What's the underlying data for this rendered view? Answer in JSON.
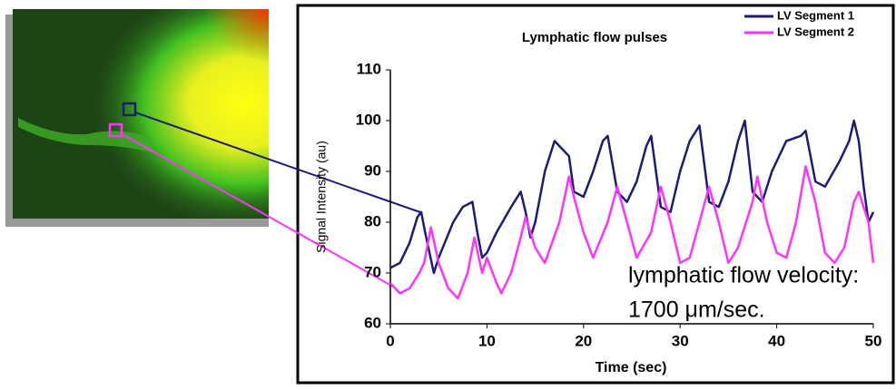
{
  "chart_data": {
    "type": "line",
    "title": "Lymphatic flow pulses",
    "y_label": "Signal Intensity (au)",
    "x_label": "Time (sec)",
    "annotations": [
      "lymphatic flow velocity:",
      "1700 μm/sec."
    ],
    "xlim": [
      0,
      50
    ],
    "xticks": [
      0,
      10,
      20,
      30,
      40,
      50
    ],
    "ylim": [
      60,
      110
    ],
    "yticks": [
      60,
      70,
      80,
      90,
      100,
      110
    ],
    "grid": false,
    "legend": "top-right",
    "series": [
      {
        "name": "LV Segment 1",
        "color": "#1c1c78",
        "x": [
          0,
          1,
          2,
          2.8,
          3.2,
          3.6,
          4.5,
          5,
          6.5,
          7.5,
          8.5,
          9,
          9.5,
          10,
          11,
          12.5,
          13.5,
          14,
          14.5,
          15,
          16,
          17,
          17.5,
          18.5,
          19,
          20,
          21,
          22,
          22.5,
          23.5,
          24.5,
          25.5,
          26.5,
          27,
          28,
          29,
          30,
          31,
          32,
          33,
          34,
          35,
          36,
          36.7,
          37.5,
          38.5,
          39.5,
          41,
          42.5,
          43,
          44,
          45,
          46.5,
          47.5,
          48,
          48.5,
          49,
          49.5,
          50
        ],
        "values": [
          71,
          72,
          76,
          81,
          82,
          78,
          70,
          73,
          80,
          83,
          84,
          78,
          73,
          74,
          78,
          83,
          86,
          82,
          77,
          80,
          90,
          96,
          95,
          93,
          86,
          85,
          90,
          96,
          97,
          86,
          84,
          88,
          95,
          97,
          83,
          82,
          90,
          96,
          99,
          84,
          83,
          88,
          96,
          100,
          86,
          84,
          90,
          96,
          97,
          98,
          88,
          87,
          92,
          96,
          100,
          96,
          87,
          80,
          82
        ]
      },
      {
        "name": "LV Segment 2",
        "color": "#ff33ff",
        "x": [
          0,
          1,
          2,
          3,
          3.5,
          4.2,
          5,
          6,
          7,
          8,
          8.7,
          9.5,
          10,
          11,
          11.5,
          12.5,
          13.5,
          14,
          15,
          16,
          17.5,
          18.5,
          19,
          20,
          21,
          22.5,
          23.5,
          24.5,
          25.5,
          27,
          28,
          29,
          30,
          31,
          32,
          33,
          34,
          35,
          36,
          37.5,
          38,
          39,
          40,
          41,
          42,
          43,
          44,
          45,
          46,
          47,
          48,
          48.5,
          49.5,
          50
        ],
        "values": [
          68,
          66,
          67,
          70,
          72,
          79,
          72,
          67,
          65,
          70,
          77,
          70,
          73,
          68,
          66,
          70,
          77,
          81,
          75,
          72,
          80,
          89,
          85,
          78,
          73,
          80,
          87,
          80,
          73,
          78,
          87,
          80,
          72,
          73,
          80,
          87,
          80,
          72,
          75,
          84,
          89,
          80,
          74,
          73,
          80,
          91,
          84,
          74,
          72,
          75,
          84,
          86,
          80,
          72
        ]
      }
    ]
  }
}
